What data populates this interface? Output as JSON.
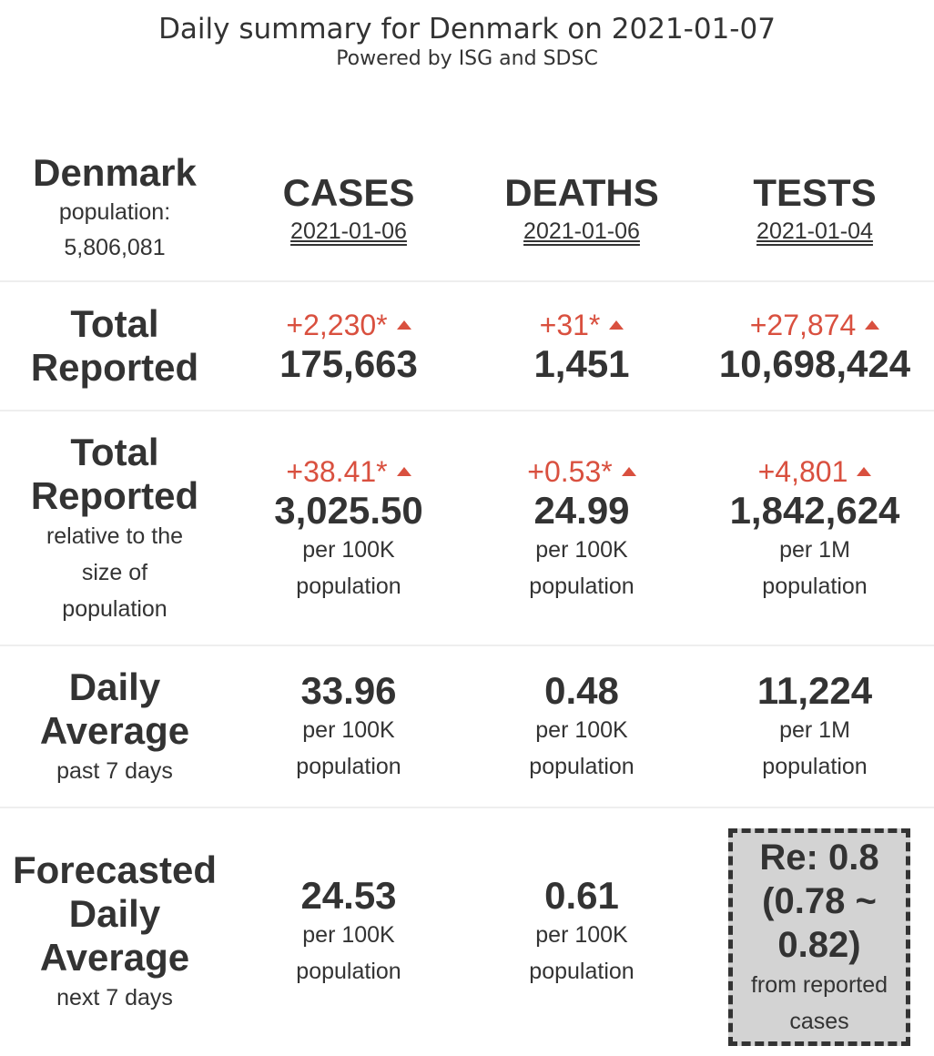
{
  "header": {
    "title": "Daily summary for Denmark on 2021-01-07",
    "subtitle": "Powered by ISG and SDSC"
  },
  "country": {
    "name": "Denmark",
    "population_label": "population:",
    "population": "5,806,081"
  },
  "columns": [
    {
      "label": "CASES",
      "date": "2021-01-06"
    },
    {
      "label": "DEATHS",
      "date": "2021-01-06"
    },
    {
      "label": "TESTS",
      "date": "2021-01-04"
    }
  ],
  "rows": {
    "total": {
      "label_line1": "Total",
      "label_line2": "Reported",
      "cells": [
        {
          "change": "+2,230*",
          "value": "175,663"
        },
        {
          "change": "+31*",
          "value": "1,451"
        },
        {
          "change": "+27,874",
          "value": "10,698,424"
        }
      ]
    },
    "relative": {
      "label_line1": "Total",
      "label_line2": "Reported",
      "sub_line1": "relative to the",
      "sub_line2": "size of",
      "sub_line3": "population",
      "cells": [
        {
          "change": "+38.41*",
          "value": "3,025.50",
          "unit1": "per 100K",
          "unit2": "population"
        },
        {
          "change": "+0.53*",
          "value": "24.99",
          "unit1": "per 100K",
          "unit2": "population"
        },
        {
          "change": "+4,801",
          "value": "1,842,624",
          "unit1": "per 1M",
          "unit2": "population"
        }
      ]
    },
    "daily_avg": {
      "label_line1": "Daily",
      "label_line2": "Average",
      "sub": "past 7 days",
      "cells": [
        {
          "value": "33.96",
          "unit1": "per 100K",
          "unit2": "population"
        },
        {
          "value": "0.48",
          "unit1": "per 100K",
          "unit2": "population"
        },
        {
          "value": "11,224",
          "unit1": "per 1M",
          "unit2": "population"
        }
      ]
    },
    "forecast": {
      "label_line1": "Forecasted",
      "label_line2": "Daily",
      "label_line3": "Average",
      "sub": "next 7 days",
      "cells": [
        {
          "value": "24.53",
          "unit1": "per 100K",
          "unit2": "population"
        },
        {
          "value": "0.61",
          "unit1": "per 100K",
          "unit2": "population"
        }
      ],
      "re": {
        "line1": "Re: 0.8",
        "line2": "(0.78 ~",
        "line3": "0.82)",
        "sub1": "from reported",
        "sub2": "cases"
      }
    }
  },
  "colors": {
    "increase": "#d9503f",
    "text": "#333333",
    "re_box_bg": "#d3d3d3"
  }
}
